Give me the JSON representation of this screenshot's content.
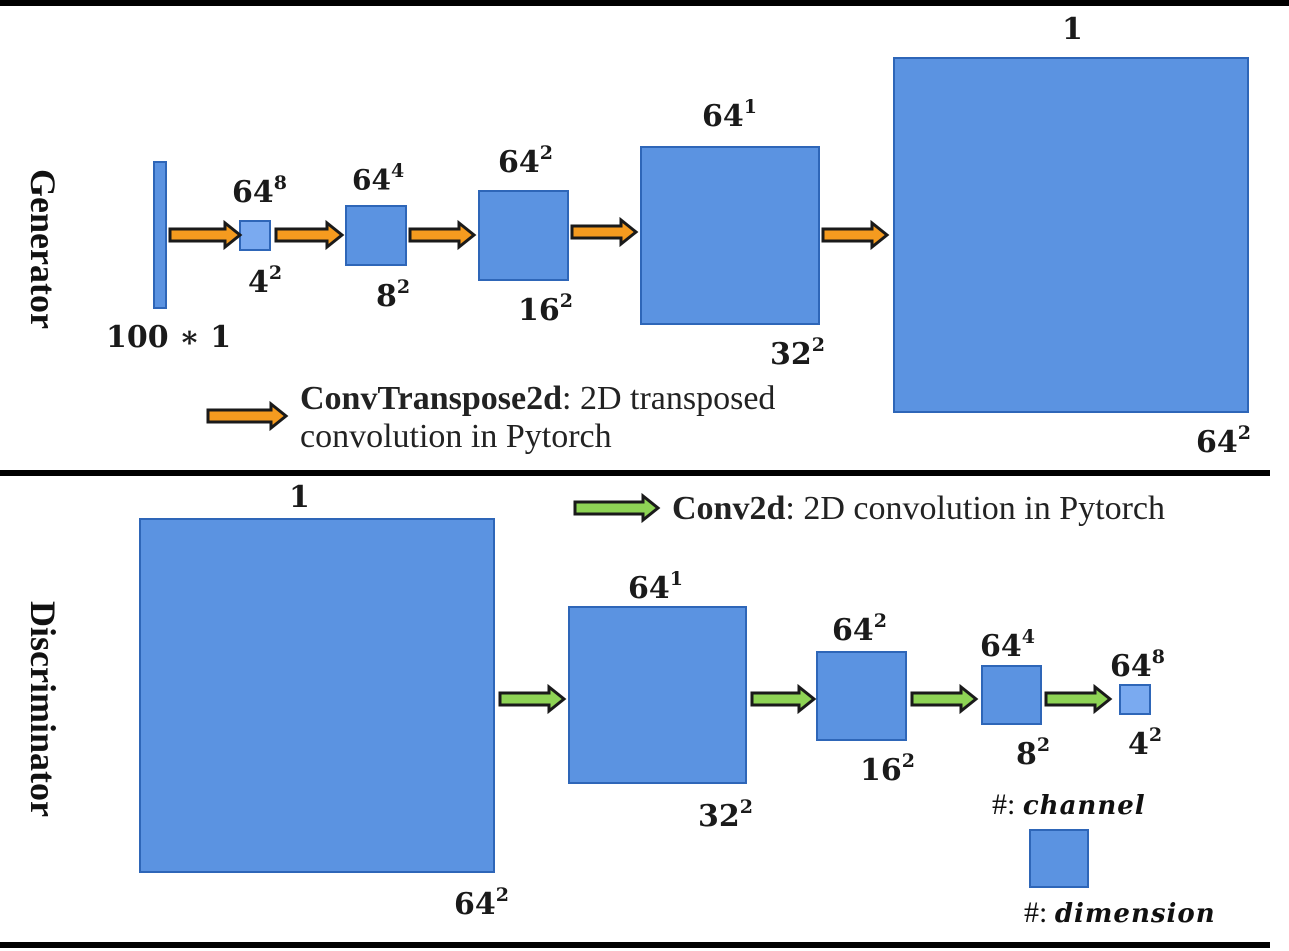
{
  "generator": {
    "title": "Generator",
    "input_label": "100 ∗ 1",
    "layers": [
      {
        "channel_base": "64",
        "channel_exp": "8",
        "dim_base": "4",
        "dim_exp": "2"
      },
      {
        "channel_base": "64",
        "channel_exp": "4",
        "dim_base": "8",
        "dim_exp": "2"
      },
      {
        "channel_base": "64",
        "channel_exp": "2",
        "dim_base": "16",
        "dim_exp": "2"
      },
      {
        "channel_base": "64",
        "channel_exp": "1",
        "dim_base": "32",
        "dim_exp": "2"
      },
      {
        "channel_base": "1",
        "channel_exp": "",
        "dim_base": "64",
        "dim_exp": "2"
      }
    ],
    "legend": {
      "term": "ConvTranspose2d",
      "line1": ": 2D transposed",
      "line2": "convolution in Pytorch"
    }
  },
  "discriminator": {
    "title": "Discriminator",
    "layers": [
      {
        "channel_base": "1",
        "channel_exp": "",
        "dim_base": "64",
        "dim_exp": "2"
      },
      {
        "channel_base": "64",
        "channel_exp": "1",
        "dim_base": "32",
        "dim_exp": "2"
      },
      {
        "channel_base": "64",
        "channel_exp": "2",
        "dim_base": "16",
        "dim_exp": "2"
      },
      {
        "channel_base": "64",
        "channel_exp": "4",
        "dim_base": "8",
        "dim_exp": "2"
      },
      {
        "channel_base": "64",
        "channel_exp": "8",
        "dim_base": "4",
        "dim_exp": "2"
      }
    ],
    "legend": {
      "term": "Conv2d",
      "text": ": 2D  convolution in Pytorch"
    }
  },
  "key": {
    "channel_prefix": "#: ",
    "channel_word": "channel",
    "dimension_prefix": "#: ",
    "dimension_word": "dimension"
  },
  "colors": {
    "box_fill": "#5b93e1",
    "box_stroke": "#2e66b8",
    "small_box_fill": "#7aaaf0",
    "orange_arrow": "#f59b1f",
    "green_arrow": "#8ed455",
    "arrow_outline": "#1a1a1a",
    "divider": "#000000"
  }
}
